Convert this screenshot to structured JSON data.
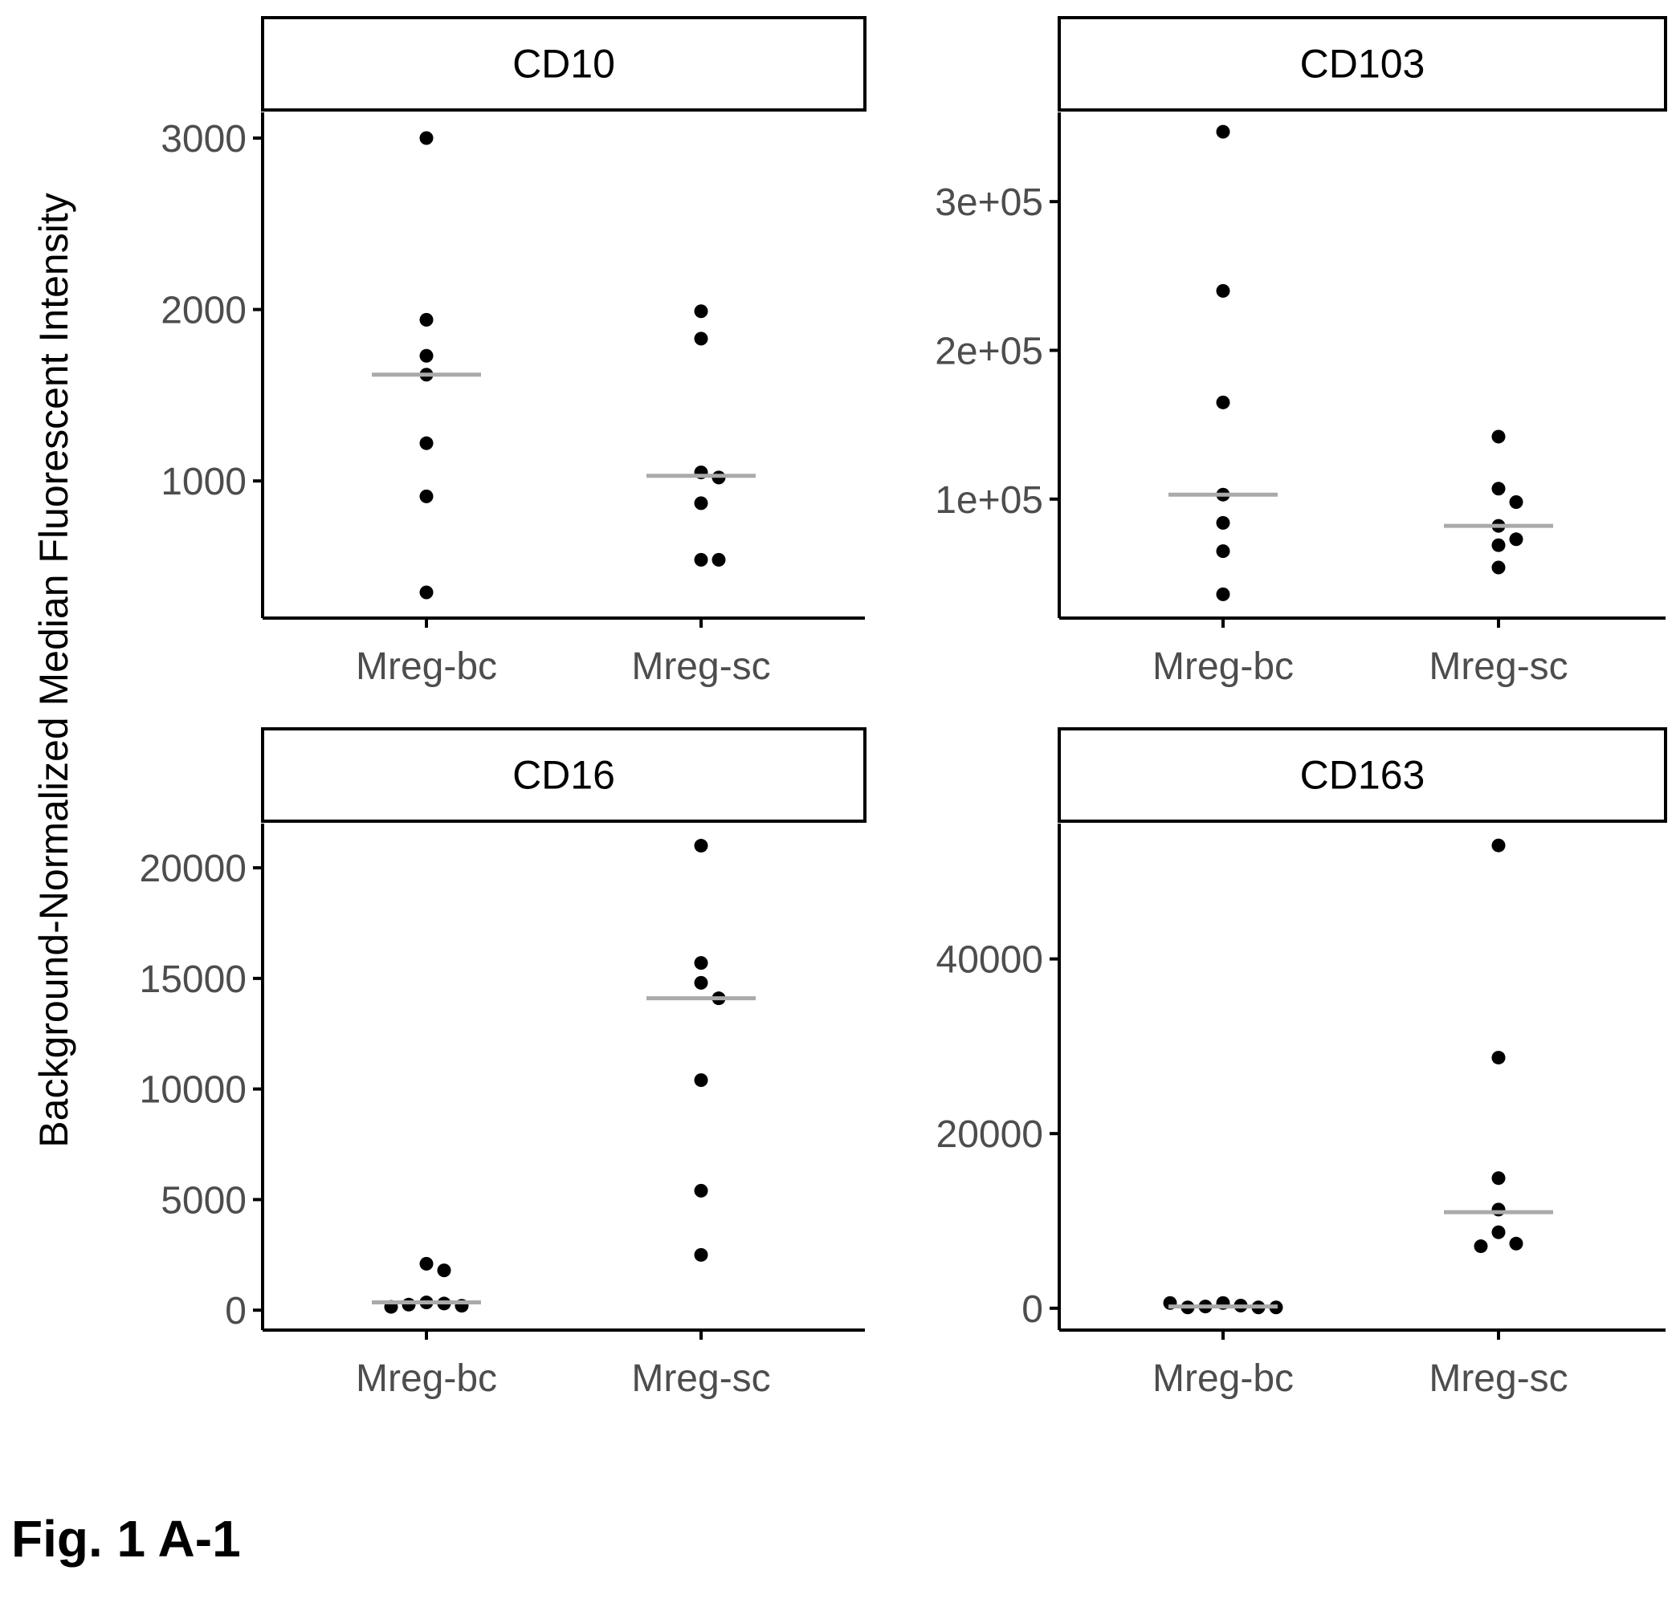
{
  "figure": {
    "ylabel": "Background-Normalized Median Fluorescent Intensity",
    "caption": "Fig. 1 A-1"
  },
  "chart_data": [
    {
      "type": "scatter",
      "title": "CD10",
      "categories": [
        "Mreg-bc",
        "Mreg-sc"
      ],
      "ylim": [
        200,
        3150
      ],
      "yticks": [
        1000,
        2000,
        3000
      ],
      "ytick_labels": [
        "1000",
        "2000",
        "3000"
      ],
      "series": [
        {
          "category": "Mreg-bc",
          "values": [
            3000,
            1940,
            1730,
            1620,
            1220,
            910,
            350
          ],
          "median": 1620
        },
        {
          "category": "Mreg-sc",
          "values": [
            1990,
            1830,
            1050,
            1020,
            870,
            540,
            540
          ],
          "median": 1030
        }
      ]
    },
    {
      "type": "scatter",
      "title": "CD103",
      "categories": [
        "Mreg-bc",
        "Mreg-sc"
      ],
      "ylim": [
        20000,
        360000
      ],
      "yticks": [
        100000,
        200000,
        300000
      ],
      "ytick_labels": [
        "1e+05",
        "2e+05",
        "3e+05"
      ],
      "series": [
        {
          "category": "Mreg-bc",
          "values": [
            347000,
            240000,
            165000,
            103000,
            84000,
            65000,
            36000
          ],
          "median": 103000
        },
        {
          "category": "Mreg-sc",
          "values": [
            142000,
            107000,
            98000,
            82000,
            73000,
            69000,
            54000
          ],
          "median": 82000
        }
      ]
    },
    {
      "type": "scatter",
      "title": "CD16",
      "categories": [
        "Mreg-bc",
        "Mreg-sc"
      ],
      "ylim": [
        -900,
        22000
      ],
      "yticks": [
        0,
        5000,
        10000,
        15000,
        20000
      ],
      "ytick_labels": [
        "0",
        "5000",
        "10000",
        "15000",
        "20000"
      ],
      "series": [
        {
          "category": "Mreg-bc",
          "values": [
            2100,
            1800,
            350,
            300,
            250,
            200,
            150
          ],
          "median": 350
        },
        {
          "category": "Mreg-sc",
          "values": [
            21000,
            15700,
            14800,
            14100,
            10400,
            5400,
            2500
          ],
          "median": 14100
        }
      ]
    },
    {
      "type": "scatter",
      "title": "CD163",
      "categories": [
        "Mreg-bc",
        "Mreg-sc"
      ],
      "ylim": [
        -2500,
        55500
      ],
      "yticks": [
        0,
        20000,
        40000
      ],
      "ytick_labels": [
        "0",
        "20000",
        "40000"
      ],
      "series": [
        {
          "category": "Mreg-bc",
          "values": [
            600,
            300,
            200,
            100,
            100,
            100,
            600
          ],
          "median": 200
        },
        {
          "category": "Mreg-sc",
          "values": [
            53000,
            28700,
            14900,
            11300,
            8700,
            7400,
            7100
          ],
          "median": 11000
        }
      ]
    }
  ],
  "colors": {
    "point": "#000000",
    "median_line": "#aaaaaa",
    "tick_text": "#4d4d4d",
    "axis": "#000000"
  }
}
